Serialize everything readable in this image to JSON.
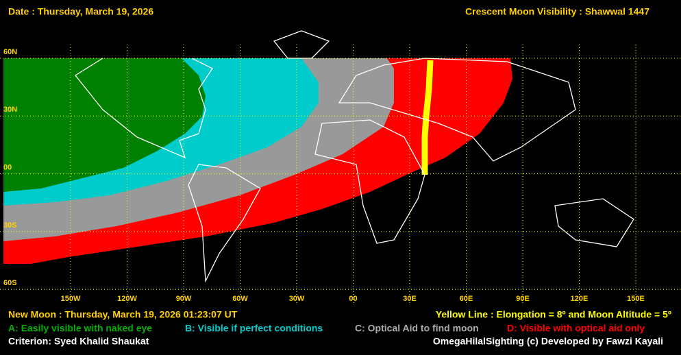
{
  "header": {
    "date": "Date : Thursday, March 19, 2026",
    "title": "Crescent Moon Visibility : Shawwal  1447"
  },
  "map": {
    "lat_labels": [
      "60N",
      "30N",
      "00",
      "30S",
      "60S"
    ],
    "lon_labels": [
      "150W",
      "120W",
      "90W",
      "60W",
      "30W",
      "00",
      "30E",
      "60E",
      "90E",
      "120E",
      "150E"
    ]
  },
  "footer": {
    "new_moon": "New Moon : Thursday, March 19, 2026  01:23:07  UT",
    "yellow_line": "Yellow Line : Elongation = 8º  and Moon Altitude = 5º",
    "legend": {
      "a": "A: Easily visible with naked eye",
      "b": "B: Visible if perfect conditions",
      "c": "C: Optical Aid to find moon",
      "d": "D: Visible with optical aid only"
    },
    "criterion": "Criterion: Syed Khalid Shaukat",
    "credit": "OmegaHilalSighting  (c)  Developed by Fawzi Kayali"
  }
}
